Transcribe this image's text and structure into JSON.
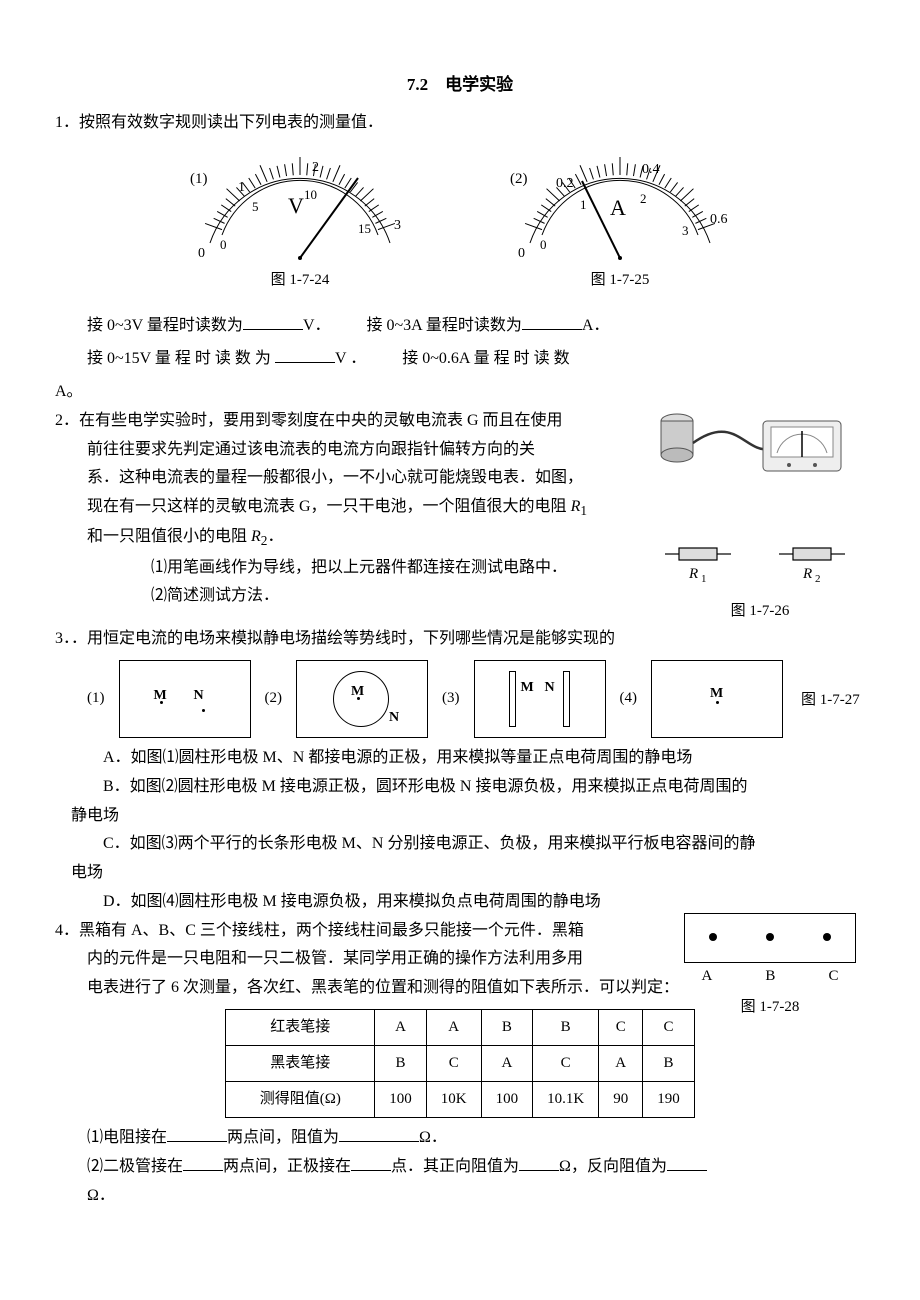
{
  "title": "7.2　电学实验",
  "q1": {
    "stem": "1．按照有效数字规则读出下列电表的测量值．",
    "meter1": {
      "tag": "(1)",
      "outer_labels": [
        "0",
        "1",
        "2",
        "3"
      ],
      "inner_labels": [
        "0",
        "5",
        "10",
        "15"
      ],
      "unit": "V",
      "needle_angle_deg": 35,
      "caption": "图 1-7-24"
    },
    "meter2": {
      "tag": "(2)",
      "outer_labels": [
        "0",
        "0.2",
        "0.4",
        "0.6"
      ],
      "inner_labels": [
        "0",
        "1",
        "2",
        "3"
      ],
      "unit": "A",
      "needle_angle_deg": 115,
      "caption": "图 1-7-25"
    },
    "read1a": "接 0~3V 量程时读数为",
    "read1a_unit": "V．",
    "read2a": "接 0~3A 量程时读数为",
    "read2a_unit": "A．",
    "read1b": "接 0~15V 量 程 时 读 数 为",
    "read1b_unit": "V ．",
    "read2b": "接 0~0.6A 量 程 时 读 数",
    "read2b_unit": "A。"
  },
  "q2": {
    "stem_lines": [
      "2．在有些电学实验时，要用到零刻度在中央的灵敏电流表 G 而且在使用",
      "前往往要求先判定通过该电流表的电流方向跟指针偏转方向的关",
      "系．这种电流表的量程一般都很小，一不小心就可能烧毁电表．如图，",
      "现在有一只这样的灵敏电流表 G，一只干电池，一个阻值很大的电阻 "
    ],
    "r1": "R",
    "r1_sub": "1",
    "stem_tail": "和一只阻值很小的电阻 ",
    "r2": "R",
    "r2_sub": "2",
    "tail_end": "．",
    "sub1": "⑴用笔画线作为导线，把以上元器件都连接在测试电路中．",
    "sub2": "⑵简述测试方法．",
    "fig_caption": "图 1-7-26",
    "fig_r1": "R₁",
    "fig_r2": "R₂"
  },
  "q3": {
    "stem": "3．．用恒定电流的电场来模拟静电场描绘等势线时，下列哪些情况是能够实现的",
    "tags": [
      "(1)",
      "(2)",
      "(3)",
      "(4)"
    ],
    "M": "M",
    "N": "N",
    "caption": "图 1-7-27",
    "optA": "A．如图⑴圆柱形电极 M、N 都接电源的正极，用来模拟等量正点电荷周围的静电场",
    "optB": "B．如图⑵圆柱形电极 M 接电源正极，圆环形电极 N 接电源负极，用来模拟正点电荷周围的",
    "optB2": "静电场",
    "optC": "C．如图⑶两个平行的长条形电极 M、N 分别接电源正、负极，用来模拟平行板电容器间的静",
    "optC2": "电场",
    "optD": "D．如图⑷圆柱形电极 M 接电源负极，用来模拟负点电荷周围的静电场"
  },
  "q4": {
    "stem1": "4．黑箱有 A、B、C 三个接线柱，两个接线柱间最多只能接一个元件．黑箱",
    "stem2": "内的元件是一只电阻和一只二极管．某同学用正确的操作方法利用多用",
    "stem3": "电表进行了 6 次测量，各次红、黑表笔的位置和测得的阻值如下表所示．可以判定：",
    "fig_caption": "图 1-7-28",
    "fig_labels": [
      "A",
      "B",
      "C"
    ],
    "table": {
      "rows": [
        [
          "红表笔接",
          "A",
          "A",
          "B",
          "B",
          "C",
          "C"
        ],
        [
          "黑表笔接",
          "B",
          "C",
          "A",
          "C",
          "A",
          "B"
        ],
        [
          "测得阻值(Ω)",
          "100",
          "10K",
          "100",
          "10.1K",
          "90",
          "190"
        ]
      ]
    },
    "s1a": "⑴电阻接在",
    "s1b": "两点间，阻值为",
    "s1c": "Ω．",
    "s2a": "⑵二极管接在",
    "s2b": "两点间，正极接在",
    "s2c": "点．其正向阻值为",
    "s2d": "Ω，反向阻值为",
    "s2e": "Ω．"
  },
  "style": {
    "page_bg": "#ffffff",
    "text_color": "#000000",
    "font_size_pt": 12,
    "line_color": "#000000"
  }
}
